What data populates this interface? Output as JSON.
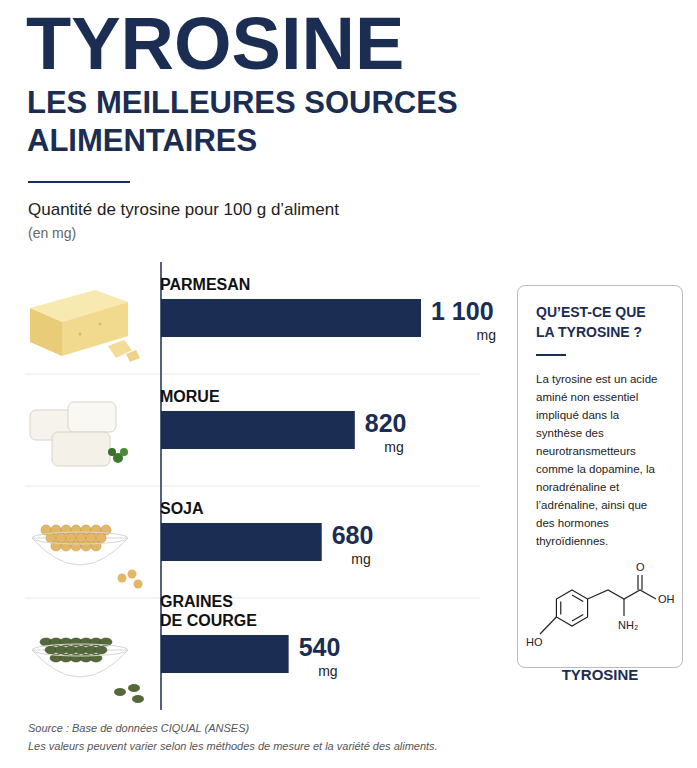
{
  "title": "TYROSINE",
  "subtitle": "LES MEILLEURES SOURCES ALIMENTAIRES",
  "caption": "Quantité de tyrosine pour 100 g d’aliment",
  "caption_unit": "(en mg)",
  "chart_data": {
    "type": "bar",
    "orientation": "horizontal",
    "categories": [
      "PARMESAN",
      "MORUE",
      "SOJA",
      "GRAINES DE COURGE"
    ],
    "values": [
      1100,
      820,
      680,
      540
    ],
    "value_labels": [
      "1 100 mg",
      "820 mg",
      "680 mg",
      "540 mg"
    ],
    "color": "#1b2d52",
    "xlim": [
      0,
      1100
    ],
    "data_labels": true,
    "tick_labels": false,
    "grid": false
  },
  "info_box": {
    "title": "QU’EST-CE QUE LA TYROSINE ?",
    "text": "La tyrosine est un acide aminé non essentiel impliqué dans la synthèse des neurotransmetteurs comme la dopamine, la noradrénaline et l’adrénaline, ainsi que des hormones thyroïdiennes.",
    "molecule": {
      "name": "TYROSINE",
      "atoms": {
        "carbonyl": "O",
        "acid": "OH",
        "phenol": "HO",
        "amine": "NH₂"
      }
    }
  },
  "footer": {
    "source": "Source : Base de données CIQUAL (ANSES)",
    "note": "Les valeurs peuvent varier selon les méthodes de mesure et la variété des aliments."
  }
}
